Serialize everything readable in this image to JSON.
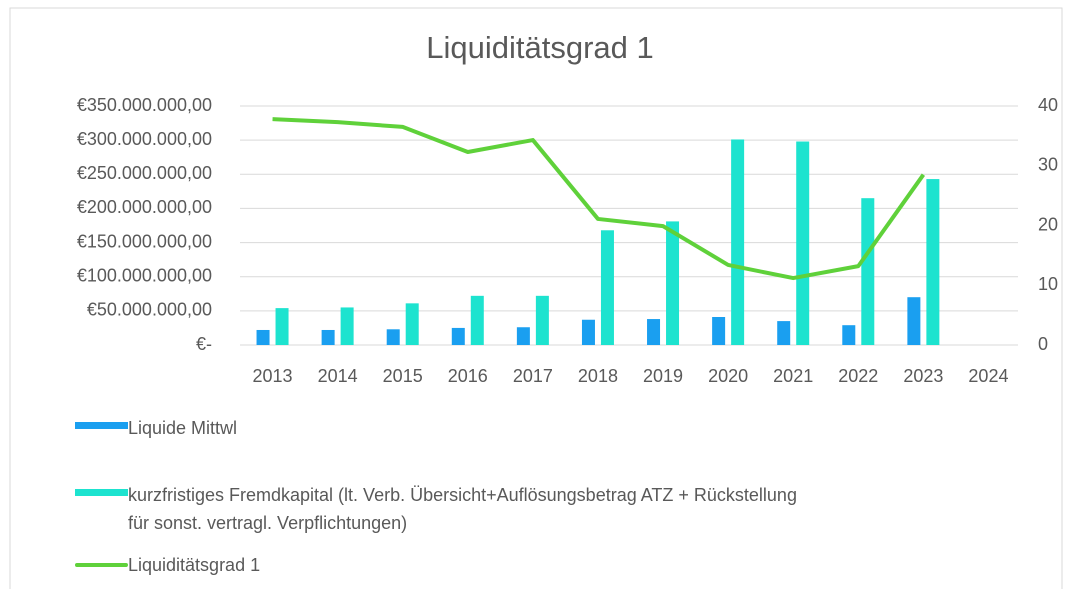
{
  "chart_data": {
    "type": "bar_line",
    "title": "Liquiditätsgrad 1",
    "categories": [
      "2013",
      "2014",
      "2015",
      "2016",
      "2017",
      "2018",
      "2019",
      "2020",
      "2021",
      "2022",
      "2023",
      "2024"
    ],
    "series": [
      {
        "name": "Liquide Mittwl",
        "type": "bar",
        "color": "#1a9ff0",
        "values": [
          22000000,
          22000000,
          23000000,
          25000000,
          26000000,
          37000000,
          38000000,
          41000000,
          35000000,
          29000000,
          70000000,
          null
        ]
      },
      {
        "name": "kurzfristiges Fremdkapital (lt. Verb. Übersicht+Auflösungsbetrag ATZ + Rückstellung für sonst. vertragl. Verpflichtungen)",
        "type": "bar",
        "color": "#1de3cf",
        "values": [
          54000000,
          55000000,
          61000000,
          72000000,
          72000000,
          168000000,
          181000000,
          301000000,
          298000000,
          215000000,
          243000000,
          null
        ]
      },
      {
        "name": "Liquiditätsgrad 1",
        "type": "line",
        "axis": "y2",
        "color": "#5fd13a",
        "values": [
          37.8,
          37.3,
          36.5,
          32.3,
          34.3,
          21.1,
          19.9,
          13.4,
          11.2,
          13.2,
          28.5,
          null
        ]
      }
    ],
    "ylim": [
      0,
      350000000
    ],
    "yticks": [
      {
        "value": 0,
        "label": "€-"
      },
      {
        "value": 50000000,
        "label": "€50.000.000,00"
      },
      {
        "value": 100000000,
        "label": "€100.000.000,00"
      },
      {
        "value": 150000000,
        "label": "€150.000.000,00"
      },
      {
        "value": 200000000,
        "label": "€200.000.000,00"
      },
      {
        "value": 250000000,
        "label": "€250.000.000,00"
      },
      {
        "value": 300000000,
        "label": "€300.000.000,00"
      },
      {
        "value": 350000000,
        "label": "€350.000.000,00"
      }
    ],
    "y2lim": [
      0,
      40
    ],
    "y2ticks": [
      0,
      10,
      20,
      30,
      40
    ],
    "grid": true,
    "legend": "bottom"
  }
}
